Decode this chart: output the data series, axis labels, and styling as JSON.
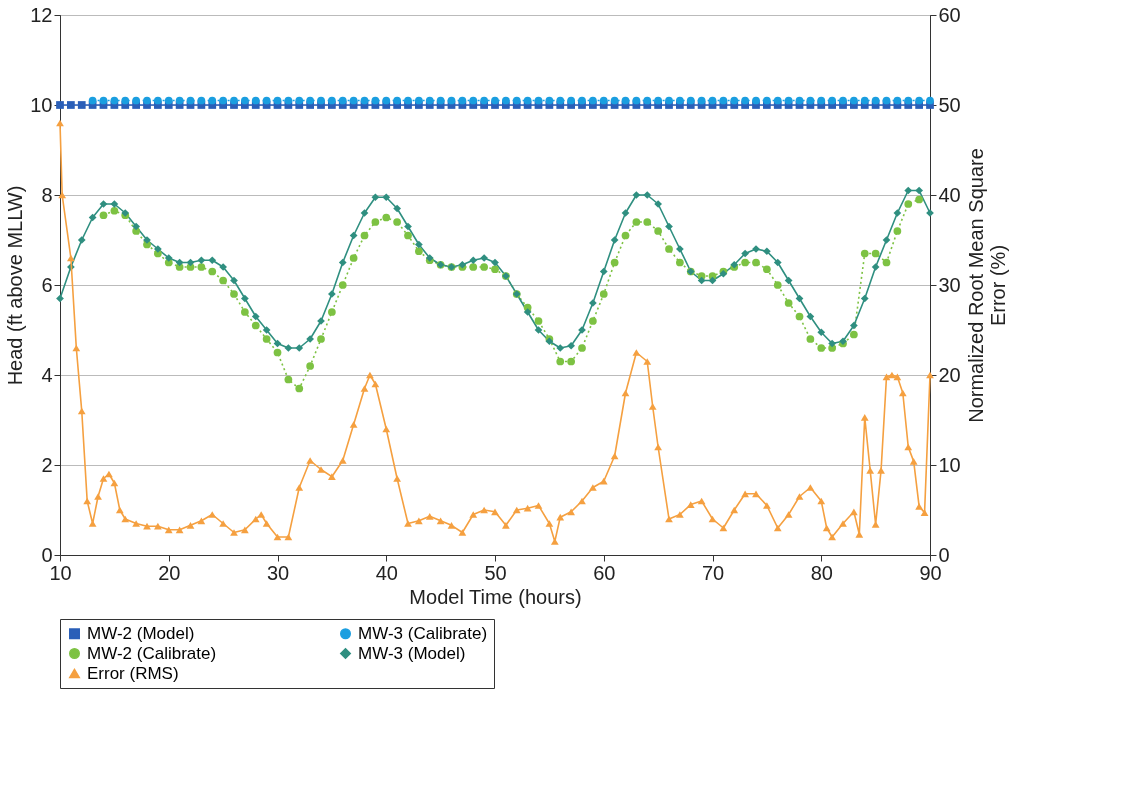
{
  "chart_data": {
    "type": "line",
    "xlabel": "Model Time (hours)",
    "ylabel": "Head (ft above MLLW)",
    "y2label": "Normalized Root Mean Square Error (%)",
    "xlim": [
      10,
      90
    ],
    "xticks": [
      10,
      20,
      30,
      40,
      50,
      60,
      70,
      80,
      90
    ],
    "ylim": [
      0,
      12
    ],
    "yticks": [
      0,
      2,
      4,
      6,
      8,
      10,
      12
    ],
    "y2lim": [
      0,
      60
    ],
    "y2ticks": [
      0,
      10,
      20,
      30,
      40,
      50,
      60
    ],
    "grid": "y",
    "legend": "bottom",
    "series": [
      {
        "name": "MW-2 (Model)",
        "color": "#2a5fb8",
        "marker": "square",
        "line_style": "solid",
        "x": [
          10,
          11,
          12,
          13,
          14,
          15,
          16,
          17,
          18,
          19,
          20,
          21,
          22,
          23,
          24,
          25,
          26,
          27,
          28,
          29,
          30,
          31,
          32,
          33,
          34,
          35,
          36,
          37,
          38,
          39,
          40,
          41,
          42,
          43,
          44,
          45,
          46,
          47,
          48,
          49,
          50,
          51,
          52,
          53,
          54,
          55,
          56,
          57,
          58,
          59,
          60,
          61,
          62,
          63,
          64,
          65,
          66,
          67,
          68,
          69,
          70,
          71,
          72,
          73,
          74,
          75,
          76,
          77,
          78,
          79,
          80,
          81,
          82,
          83,
          84,
          85,
          86,
          87,
          88,
          89,
          90
        ],
        "values": [
          10,
          10,
          10,
          10,
          10,
          10,
          10,
          10,
          10,
          10,
          10,
          10,
          10,
          10,
          10,
          10,
          10,
          10,
          10,
          10,
          10,
          10,
          10,
          10,
          10,
          10,
          10,
          10,
          10,
          10,
          10,
          10,
          10,
          10,
          10,
          10,
          10,
          10,
          10,
          10,
          10,
          10,
          10,
          10,
          10,
          10,
          10,
          10,
          10,
          10,
          10,
          10,
          10,
          10,
          10,
          10,
          10,
          10,
          10,
          10,
          10,
          10,
          10,
          10,
          10,
          10,
          10,
          10,
          10,
          10,
          10,
          10,
          10,
          10,
          10,
          10,
          10,
          10,
          10,
          10,
          10
        ]
      },
      {
        "name": "MW-3 (Calibrate)",
        "color": "#1a9ee0",
        "marker": "circle",
        "line_style": "dotted",
        "x": [
          13,
          14,
          15,
          16,
          17,
          18,
          19,
          20,
          21,
          22,
          23,
          24,
          25,
          26,
          27,
          28,
          29,
          30,
          31,
          32,
          33,
          34,
          35,
          36,
          37,
          38,
          39,
          40,
          41,
          42,
          43,
          44,
          45,
          46,
          47,
          48,
          49,
          50,
          51,
          52,
          53,
          54,
          55,
          56,
          57,
          58,
          59,
          60,
          61,
          62,
          63,
          64,
          65,
          66,
          67,
          68,
          69,
          70,
          71,
          72,
          73,
          74,
          75,
          76,
          77,
          78,
          79,
          80,
          81,
          82,
          83,
          84,
          85,
          86,
          87,
          88,
          89,
          90
        ],
        "values": [
          10.1,
          10.1,
          10.1,
          10.1,
          10.1,
          10.1,
          10.1,
          10.1,
          10.1,
          10.1,
          10.1,
          10.1,
          10.1,
          10.1,
          10.1,
          10.1,
          10.1,
          10.1,
          10.1,
          10.1,
          10.1,
          10.1,
          10.1,
          10.1,
          10.1,
          10.1,
          10.1,
          10.1,
          10.1,
          10.1,
          10.1,
          10.1,
          10.1,
          10.1,
          10.1,
          10.1,
          10.1,
          10.1,
          10.1,
          10.1,
          10.1,
          10.1,
          10.1,
          10.1,
          10.1,
          10.1,
          10.1,
          10.1,
          10.1,
          10.1,
          10.1,
          10.1,
          10.1,
          10.1,
          10.1,
          10.1,
          10.1,
          10.1,
          10.1,
          10.1,
          10.1,
          10.1,
          10.1,
          10.1,
          10.1,
          10.1,
          10.1,
          10.1,
          10.1,
          10.1,
          10.1,
          10.1,
          10.1,
          10.1,
          10.1,
          10.1,
          10.1,
          10.1
        ]
      },
      {
        "name": "MW-2 (Calibrate)",
        "color": "#7dc243",
        "marker": "circle",
        "line_style": "dotted",
        "x": [
          14,
          15,
          16,
          17,
          18,
          19,
          20,
          21,
          22,
          23,
          24,
          25,
          26,
          27,
          28,
          29,
          30,
          31,
          32,
          33,
          34,
          35,
          36,
          37,
          38,
          39,
          40,
          41,
          42,
          43,
          44,
          45,
          46,
          47,
          48,
          49,
          50,
          51,
          52,
          53,
          54,
          55,
          56,
          57,
          58,
          59,
          60,
          61,
          62,
          63,
          64,
          65,
          66,
          67,
          68,
          69,
          70,
          71,
          72,
          73,
          74,
          75,
          76,
          77,
          78,
          79,
          80,
          81,
          82,
          83,
          84,
          85,
          86,
          87,
          88,
          89
        ],
        "values": [
          7.55,
          7.65,
          7.55,
          7.2,
          6.9,
          6.7,
          6.5,
          6.4,
          6.4,
          6.4,
          6.3,
          6.1,
          5.8,
          5.4,
          5.1,
          4.8,
          4.5,
          3.9,
          3.7,
          4.2,
          4.8,
          5.4,
          6.0,
          6.6,
          7.1,
          7.4,
          7.5,
          7.4,
          7.1,
          6.75,
          6.55,
          6.45,
          6.4,
          6.4,
          6.4,
          6.4,
          6.35,
          6.2,
          5.8,
          5.5,
          5.2,
          4.8,
          4.3,
          4.3,
          4.6,
          5.2,
          5.8,
          6.5,
          7.1,
          7.4,
          7.4,
          7.2,
          6.8,
          6.5,
          6.3,
          6.2,
          6.2,
          6.3,
          6.4,
          6.5,
          6.5,
          6.35,
          6.0,
          5.6,
          5.3,
          4.8,
          4.6,
          4.6,
          4.7,
          4.9,
          6.7,
          6.7,
          6.5,
          7.2,
          7.8,
          7.9
        ]
      },
      {
        "name": "MW-3 (Model)",
        "color": "#2f8f80",
        "marker": "diamond",
        "line_style": "solid",
        "x": [
          10,
          11,
          12,
          13,
          14,
          15,
          16,
          17,
          18,
          19,
          20,
          21,
          22,
          23,
          24,
          25,
          26,
          27,
          28,
          29,
          30,
          31,
          32,
          33,
          34,
          35,
          36,
          37,
          38,
          39,
          40,
          41,
          42,
          43,
          44,
          45,
          46,
          47,
          48,
          49,
          50,
          51,
          52,
          53,
          54,
          55,
          56,
          57,
          58,
          59,
          60,
          61,
          62,
          63,
          64,
          65,
          66,
          67,
          68,
          69,
          70,
          71,
          72,
          73,
          74,
          75,
          76,
          77,
          78,
          79,
          80,
          81,
          82,
          83,
          84,
          85,
          86,
          87,
          88,
          89,
          90
        ],
        "values": [
          5.7,
          6.4,
          7.0,
          7.5,
          7.8,
          7.8,
          7.6,
          7.3,
          7.0,
          6.8,
          6.6,
          6.5,
          6.5,
          6.55,
          6.55,
          6.4,
          6.1,
          5.7,
          5.3,
          5.0,
          4.7,
          4.6,
          4.6,
          4.8,
          5.2,
          5.8,
          6.5,
          7.1,
          7.6,
          7.95,
          7.95,
          7.7,
          7.3,
          6.9,
          6.6,
          6.45,
          6.4,
          6.45,
          6.55,
          6.6,
          6.5,
          6.2,
          5.8,
          5.4,
          5.0,
          4.75,
          4.6,
          4.65,
          5.0,
          5.6,
          6.3,
          7.0,
          7.6,
          8.0,
          8.0,
          7.8,
          7.3,
          6.8,
          6.3,
          6.1,
          6.1,
          6.25,
          6.45,
          6.7,
          6.8,
          6.75,
          6.5,
          6.1,
          5.7,
          5.3,
          4.95,
          4.7,
          4.75,
          5.1,
          5.7,
          6.4,
          7.0,
          7.6,
          8.1,
          8.1,
          7.6
        ]
      },
      {
        "name": "Error (RMS)",
        "color": "#f5a040",
        "marker": "triangle",
        "line_style": "solid",
        "axis": "y2",
        "x": [
          10,
          10.2,
          11,
          11.5,
          12,
          12.5,
          13,
          13.5,
          14,
          14.5,
          15,
          15.5,
          16,
          17,
          18,
          19,
          20,
          21,
          22,
          23,
          24,
          25,
          26,
          27,
          28,
          28.5,
          29,
          30,
          31,
          32,
          33,
          34,
          35,
          36,
          37,
          38,
          38.5,
          39,
          40,
          41,
          42,
          43,
          44,
          45,
          46,
          47,
          48,
          49,
          50,
          51,
          52,
          53,
          54,
          55,
          55.5,
          56,
          57,
          58,
          59,
          60,
          61,
          62,
          63,
          64,
          64.5,
          65,
          66,
          67,
          68,
          69,
          70,
          71,
          72,
          73,
          74,
          75,
          76,
          77,
          78,
          79,
          80,
          80.5,
          81,
          82,
          83,
          83.5,
          84,
          84.5,
          85,
          85.5,
          86,
          86.5,
          87,
          87.5,
          88,
          88.5,
          89,
          89.5,
          90
        ],
        "values": [
          48,
          40,
          33,
          23,
          16,
          6,
          3.5,
          6.5,
          8.5,
          9,
          8,
          5,
          4,
          3.5,
          3.2,
          3.2,
          2.8,
          2.8,
          3.3,
          3.8,
          4.5,
          3.5,
          2.5,
          2.8,
          4.0,
          4.5,
          3.5,
          2.0,
          2.0,
          7.5,
          10.5,
          9.5,
          8.7,
          10.5,
          14.5,
          18.5,
          20,
          19,
          14,
          8.5,
          3.5,
          3.8,
          4.3,
          3.8,
          3.3,
          2.5,
          4.5,
          5,
          4.8,
          3.3,
          5,
          5.2,
          5.5,
          3.5,
          1.5,
          4.2,
          4.8,
          6,
          7.5,
          8.2,
          11,
          18,
          22.5,
          21.5,
          16.5,
          12,
          4,
          4.5,
          5.6,
          6,
          4.0,
          3,
          5,
          6.8,
          6.8,
          5.5,
          3,
          4.5,
          6.5,
          7.5,
          6,
          3,
          2,
          3.5,
          4.8,
          2.3,
          15.3,
          9.4,
          3.4,
          9.4,
          19.8,
          20,
          19.8,
          18,
          12,
          10.4,
          5.4,
          4.7,
          20
        ]
      }
    ]
  }
}
